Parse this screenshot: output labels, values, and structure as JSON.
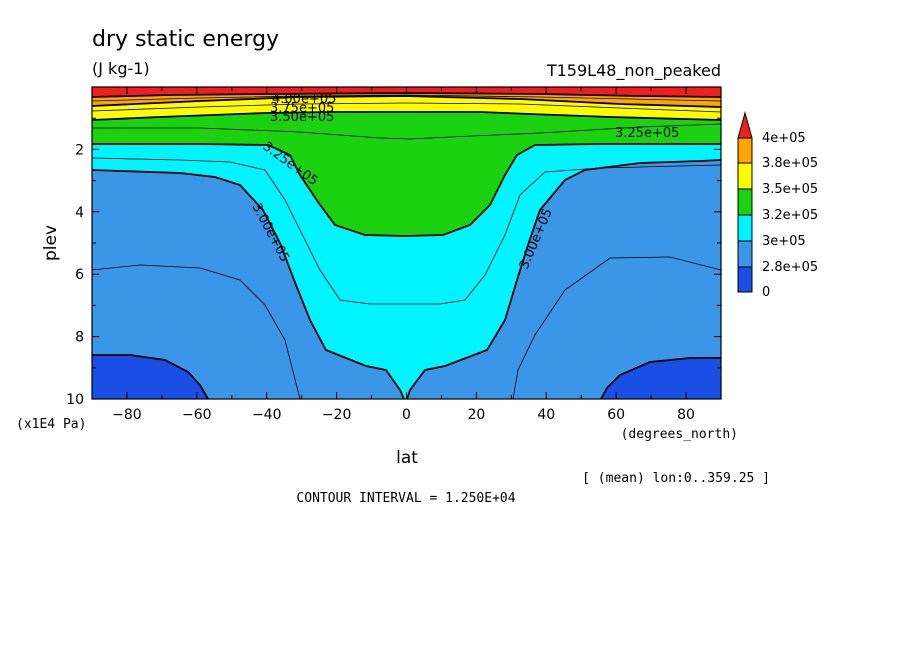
{
  "chart_data": {
    "type": "heatmap",
    "title": "dry static energy",
    "units": "(J kg-1)",
    "experiment": "T159L48_non_peaked",
    "xlabel": "lat",
    "ylabel": "plev",
    "x_unit": "(degrees_north)",
    "y_unit": "(x1E4 Pa)",
    "xlim": [
      -90,
      90
    ],
    "ylim": [
      10,
      0
    ],
    "x_ticks": [
      -80,
      -60,
      -40,
      -20,
      0,
      20,
      40,
      60,
      80
    ],
    "y_ticks": [
      2,
      4,
      6,
      8,
      10
    ],
    "mean_note": "[ (mean) lon:0..359.25 ]",
    "contour_interval": "CONTOUR INTERVAL = 1.250E+04",
    "contour_labels": [
      "4.00e+05",
      "3.75e+05",
      "3.50e+05",
      "3.25e+05",
      "3.25e+05",
      "3.00e+05",
      "3.00e+05"
    ],
    "legend_labels": [
      "0",
      "2.8e+05",
      "3e+05",
      "3.2e+05",
      "3.5e+05",
      "3.8e+05",
      "4e+05"
    ],
    "colors": {
      "lt_275": "#1a4fe6",
      "275_300": "#3c96e8",
      "300_325": "#00f4ff",
      "325_350": "#1ad20f",
      "350_375": "#fffb00",
      "375_400": "#ffa500",
      "gt_400": "#f01e1e"
    },
    "bands_approx": [
      {
        "range": "< 2.75e+05",
        "description": "lower troposphere poleward of 55 deg, plev > 8.7"
      },
      {
        "range": "2.75e+05 - 3.00e+05",
        "description": "mid/lower troposphere outside tropics"
      },
      {
        "range": "3.00e+05 - 3.25e+05",
        "description": "tropical troposphere and upper levels"
      },
      {
        "range": "3.25e+05 - 3.50e+05",
        "description": "tropical upper troposphere to plev 4.8"
      },
      {
        "range": "> 3.50e+05",
        "description": "stratosphere, plev < 1.2"
      }
    ]
  }
}
